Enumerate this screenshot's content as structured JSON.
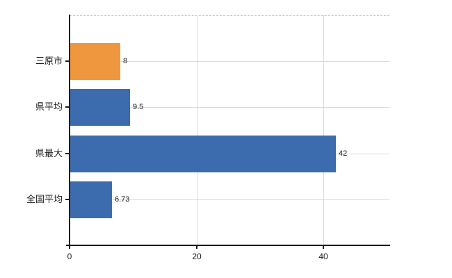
{
  "chart": {
    "background_color": "#ffffff",
    "axis_color": "#1a1a1a",
    "grid_color": "#d9d9d9",
    "top_border_color": "#c6c6c6",
    "text_color": "#1a1a1a",
    "accent_orange": "#ee973e",
    "accent_blue": "#3d6cae"
  },
  "chart_data": {
    "type": "bar",
    "orientation": "horizontal",
    "title": "",
    "xlabel": "",
    "ylabel": "",
    "categories": [
      "三原市",
      "県平均",
      "県最大",
      "全国平均"
    ],
    "values": [
      8,
      9.5,
      42,
      6.73
    ],
    "value_labels": [
      "8",
      "9.5",
      "42",
      "6.73"
    ],
    "bar_colors": [
      "#ee973e",
      "#3d6cae",
      "#3d6cae",
      "#3d6cae"
    ],
    "xlim": [
      0,
      50.4
    ],
    "xticks": [
      0,
      20,
      40
    ],
    "xtick_labels": [
      "0",
      "20",
      "40"
    ],
    "grid": true,
    "legend": false
  }
}
